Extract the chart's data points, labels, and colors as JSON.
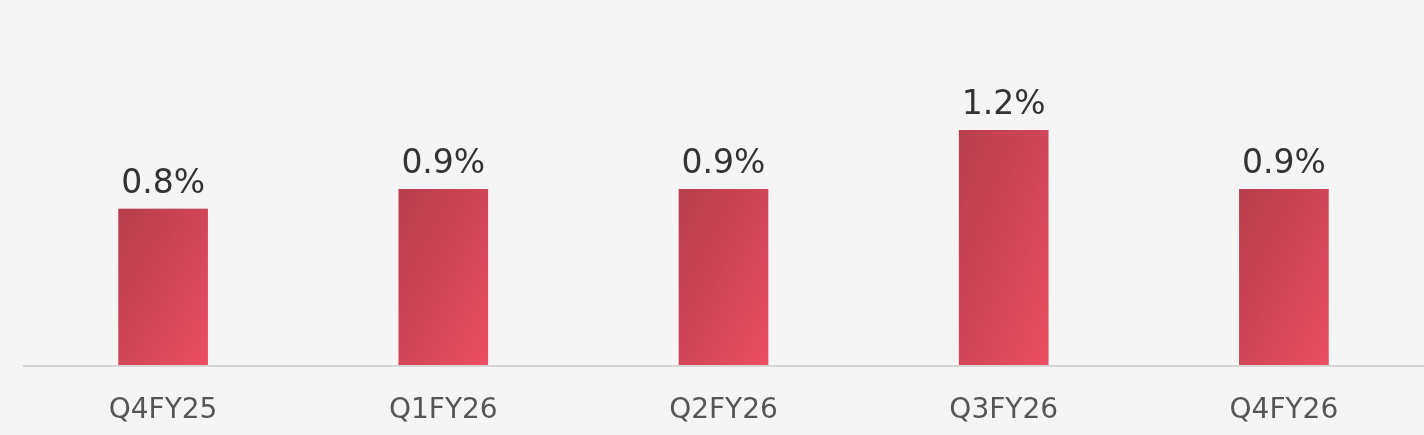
{
  "chart_data": {
    "type": "bar",
    "categories": [
      "Q4FY25",
      "Q1FY26",
      "Q2FY26",
      "Q3FY26",
      "Q4FY26"
    ],
    "values": [
      0.8,
      0.9,
      0.9,
      1.2,
      0.9
    ],
    "value_labels": [
      "0.8%",
      "0.9%",
      "0.9%",
      "1.2%",
      "0.9%"
    ],
    "color": "#cf4557"
  }
}
